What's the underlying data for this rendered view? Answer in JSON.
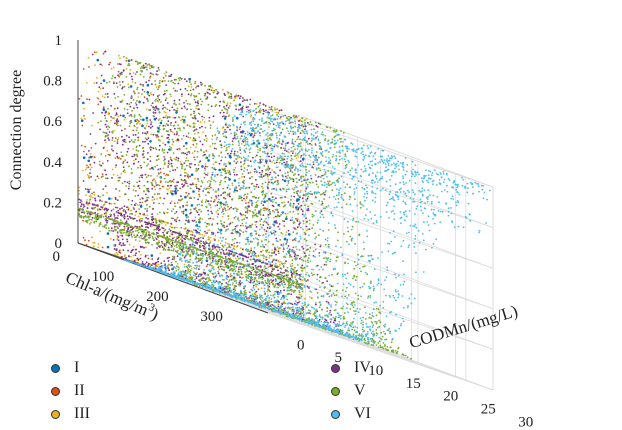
{
  "chart_data": {
    "type": "scatter",
    "title": "",
    "xlabel": "CODMn/(mg/L)",
    "ylabel_parts": [
      "Chl-a/(mg/m",
      "3",
      ")"
    ],
    "zlabel": "Connection degree",
    "x_ticks": [
      "0",
      "5",
      "10",
      "15",
      "20",
      "25",
      "30"
    ],
    "y_ticks": [
      "0",
      "100",
      "200",
      "300"
    ],
    "z_ticks": [
      "0",
      "0.2",
      "0.4",
      "0.6",
      "0.8",
      "1"
    ],
    "xlim": [
      0,
      30
    ],
    "ylim": [
      0,
      350
    ],
    "zlim": [
      0,
      1
    ],
    "grid": true,
    "legend_placement": "bottom",
    "series": [
      {
        "name": "I",
        "color": "#0072BD",
        "shape": "spike",
        "center": 0,
        "width": 0.45,
        "count": 120
      },
      {
        "name": "II",
        "color": "#D95319",
        "shape": "bell",
        "center": 3,
        "width": 2.5,
        "count": 260
      },
      {
        "name": "III",
        "color": "#EDB120",
        "shape": "bell",
        "center": 10,
        "width": 6,
        "count": 700
      },
      {
        "name": "IV",
        "color": "#7E2F8E",
        "shape": "bell",
        "center": 28,
        "width": 16,
        "count": 1700
      },
      {
        "name": "V",
        "color": "#77AC30",
        "shape": "bell",
        "center": 75,
        "width": 40,
        "count": 2600
      },
      {
        "name": "VI",
        "color": "#4DBEEE",
        "shape": "plateau",
        "center": 220,
        "width": 60,
        "count": 2200
      }
    ]
  }
}
